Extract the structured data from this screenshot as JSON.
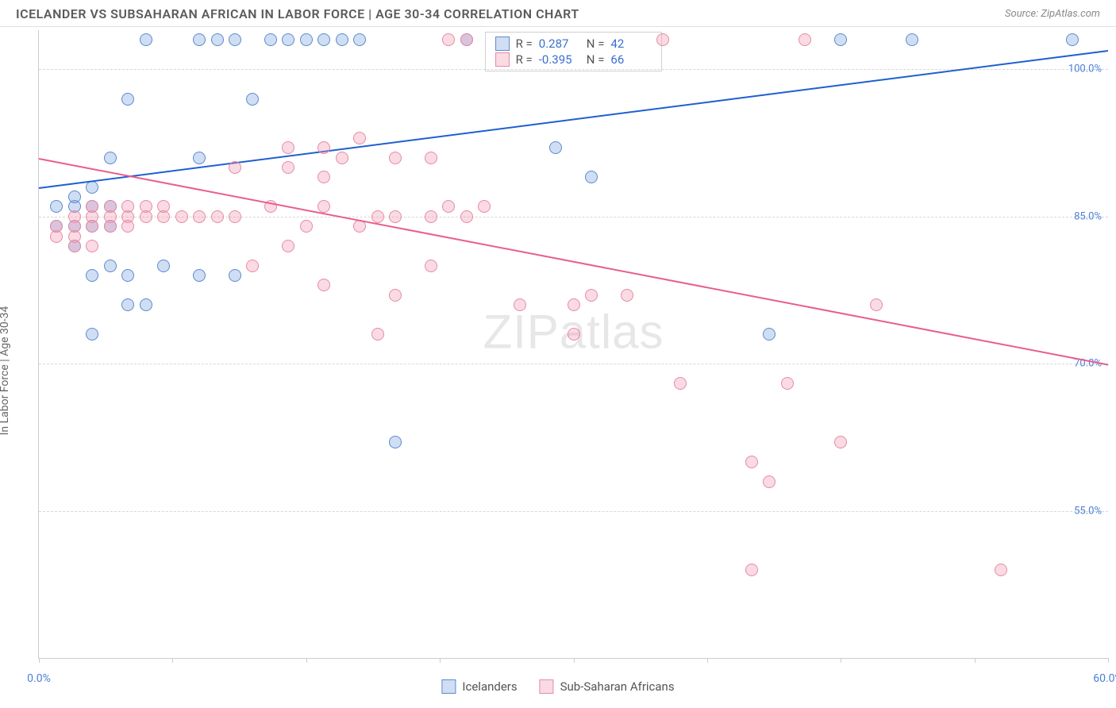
{
  "header": {
    "title": "ICELANDER VS SUBSAHARAN AFRICAN IN LABOR FORCE | AGE 30-34 CORRELATION CHART",
    "source_label": "Source: ZipAtlas.com"
  },
  "ylabel": "In Labor Force | Age 30-34",
  "watermark": "ZIPatlas",
  "chart": {
    "type": "scatter",
    "xlim": [
      0,
      60
    ],
    "ylim": [
      40,
      104
    ],
    "x_ticks": [
      0,
      7.5,
      15,
      22.5,
      30,
      37.5,
      45,
      52.5,
      60
    ],
    "x_tick_labels": {
      "0": "0.0%",
      "60": "60.0%"
    },
    "y_gridlines": [
      55,
      70,
      85,
      100
    ],
    "y_tick_labels": {
      "55": "55.0%",
      "70": "70.0%",
      "85": "85.0%",
      "100": "100.0%"
    },
    "grid_color": "#d8d8d8",
    "axis_color": "#cccccc",
    "background_color": "#ffffff",
    "point_radius": 8,
    "series": [
      {
        "name": "Icelanders",
        "fill": "rgba(120,160,220,0.35)",
        "stroke": "#5a8ad0",
        "trend_color": "#1f5fd0",
        "correlation": {
          "r": "0.287",
          "n": "42"
        },
        "trend": {
          "x1": 0,
          "y1": 88,
          "x2": 60,
          "y2": 102
        },
        "points": [
          [
            6,
            103
          ],
          [
            9,
            103
          ],
          [
            11,
            103
          ],
          [
            15,
            103
          ],
          [
            16,
            103
          ],
          [
            17,
            103
          ],
          [
            18,
            103
          ],
          [
            24,
            103
          ],
          [
            45,
            103
          ],
          [
            49,
            103
          ],
          [
            58,
            103
          ],
          [
            5,
            97
          ],
          [
            12,
            97
          ],
          [
            4,
            91
          ],
          [
            9,
            91
          ],
          [
            1,
            86
          ],
          [
            2,
            86
          ],
          [
            3,
            86
          ],
          [
            4,
            86
          ],
          [
            2,
            84
          ],
          [
            3,
            84
          ],
          [
            4,
            84
          ],
          [
            4,
            80
          ],
          [
            7,
            80
          ],
          [
            3,
            79
          ],
          [
            5,
            79
          ],
          [
            9,
            79
          ],
          [
            11,
            79
          ],
          [
            29,
            92
          ],
          [
            31,
            89
          ],
          [
            41,
            73
          ],
          [
            3,
            73
          ],
          [
            5,
            76
          ],
          [
            6,
            76
          ],
          [
            20,
            62
          ],
          [
            14,
            103
          ],
          [
            13,
            103
          ],
          [
            2,
            87
          ],
          [
            3,
            88
          ],
          [
            1,
            84
          ],
          [
            2,
            82
          ],
          [
            10,
            103
          ]
        ]
      },
      {
        "name": "Sub-Saharan Africans",
        "fill": "rgba(240,150,175,0.35)",
        "stroke": "#e78aa5",
        "trend_color": "#e85f8a",
        "correlation": {
          "r": "-0.395",
          "n": "66"
        },
        "trend": {
          "x1": 0,
          "y1": 91,
          "x2": 60,
          "y2": 70
        },
        "points": [
          [
            23,
            103
          ],
          [
            24,
            103
          ],
          [
            35,
            103
          ],
          [
            43,
            103
          ],
          [
            14,
            92
          ],
          [
            16,
            92
          ],
          [
            17,
            91
          ],
          [
            18,
            93
          ],
          [
            11,
            90
          ],
          [
            14,
            90
          ],
          [
            16,
            89
          ],
          [
            20,
            91
          ],
          [
            22,
            91
          ],
          [
            2,
            85
          ],
          [
            3,
            85
          ],
          [
            4,
            85
          ],
          [
            5,
            85
          ],
          [
            6,
            85
          ],
          [
            7,
            85
          ],
          [
            8,
            85
          ],
          [
            9,
            85
          ],
          [
            10,
            85
          ],
          [
            11,
            85
          ],
          [
            2,
            84
          ],
          [
            3,
            84
          ],
          [
            4,
            84
          ],
          [
            5,
            84
          ],
          [
            1,
            83
          ],
          [
            2,
            83
          ],
          [
            12,
            80
          ],
          [
            14,
            82
          ],
          [
            15,
            84
          ],
          [
            18,
            84
          ],
          [
            19,
            85
          ],
          [
            20,
            85
          ],
          [
            22,
            85
          ],
          [
            16,
            78
          ],
          [
            20,
            77
          ],
          [
            22,
            80
          ],
          [
            27,
            76
          ],
          [
            30,
            76
          ],
          [
            31,
            77
          ],
          [
            33,
            77
          ],
          [
            19,
            73
          ],
          [
            30,
            73
          ],
          [
            47,
            76
          ],
          [
            36,
            68
          ],
          [
            42,
            68
          ],
          [
            40,
            60
          ],
          [
            45,
            62
          ],
          [
            41,
            58
          ],
          [
            40,
            49
          ],
          [
            54,
            49
          ],
          [
            3,
            86
          ],
          [
            4,
            86
          ],
          [
            5,
            86
          ],
          [
            6,
            86
          ],
          [
            7,
            86
          ],
          [
            1,
            84
          ],
          [
            2,
            82
          ],
          [
            3,
            82
          ],
          [
            24,
            85
          ],
          [
            25,
            86
          ],
          [
            23,
            86
          ],
          [
            16,
            86
          ],
          [
            13,
            86
          ]
        ]
      }
    ]
  },
  "legend": {
    "items": [
      "Icelanders",
      "Sub-Saharan Africans"
    ]
  }
}
